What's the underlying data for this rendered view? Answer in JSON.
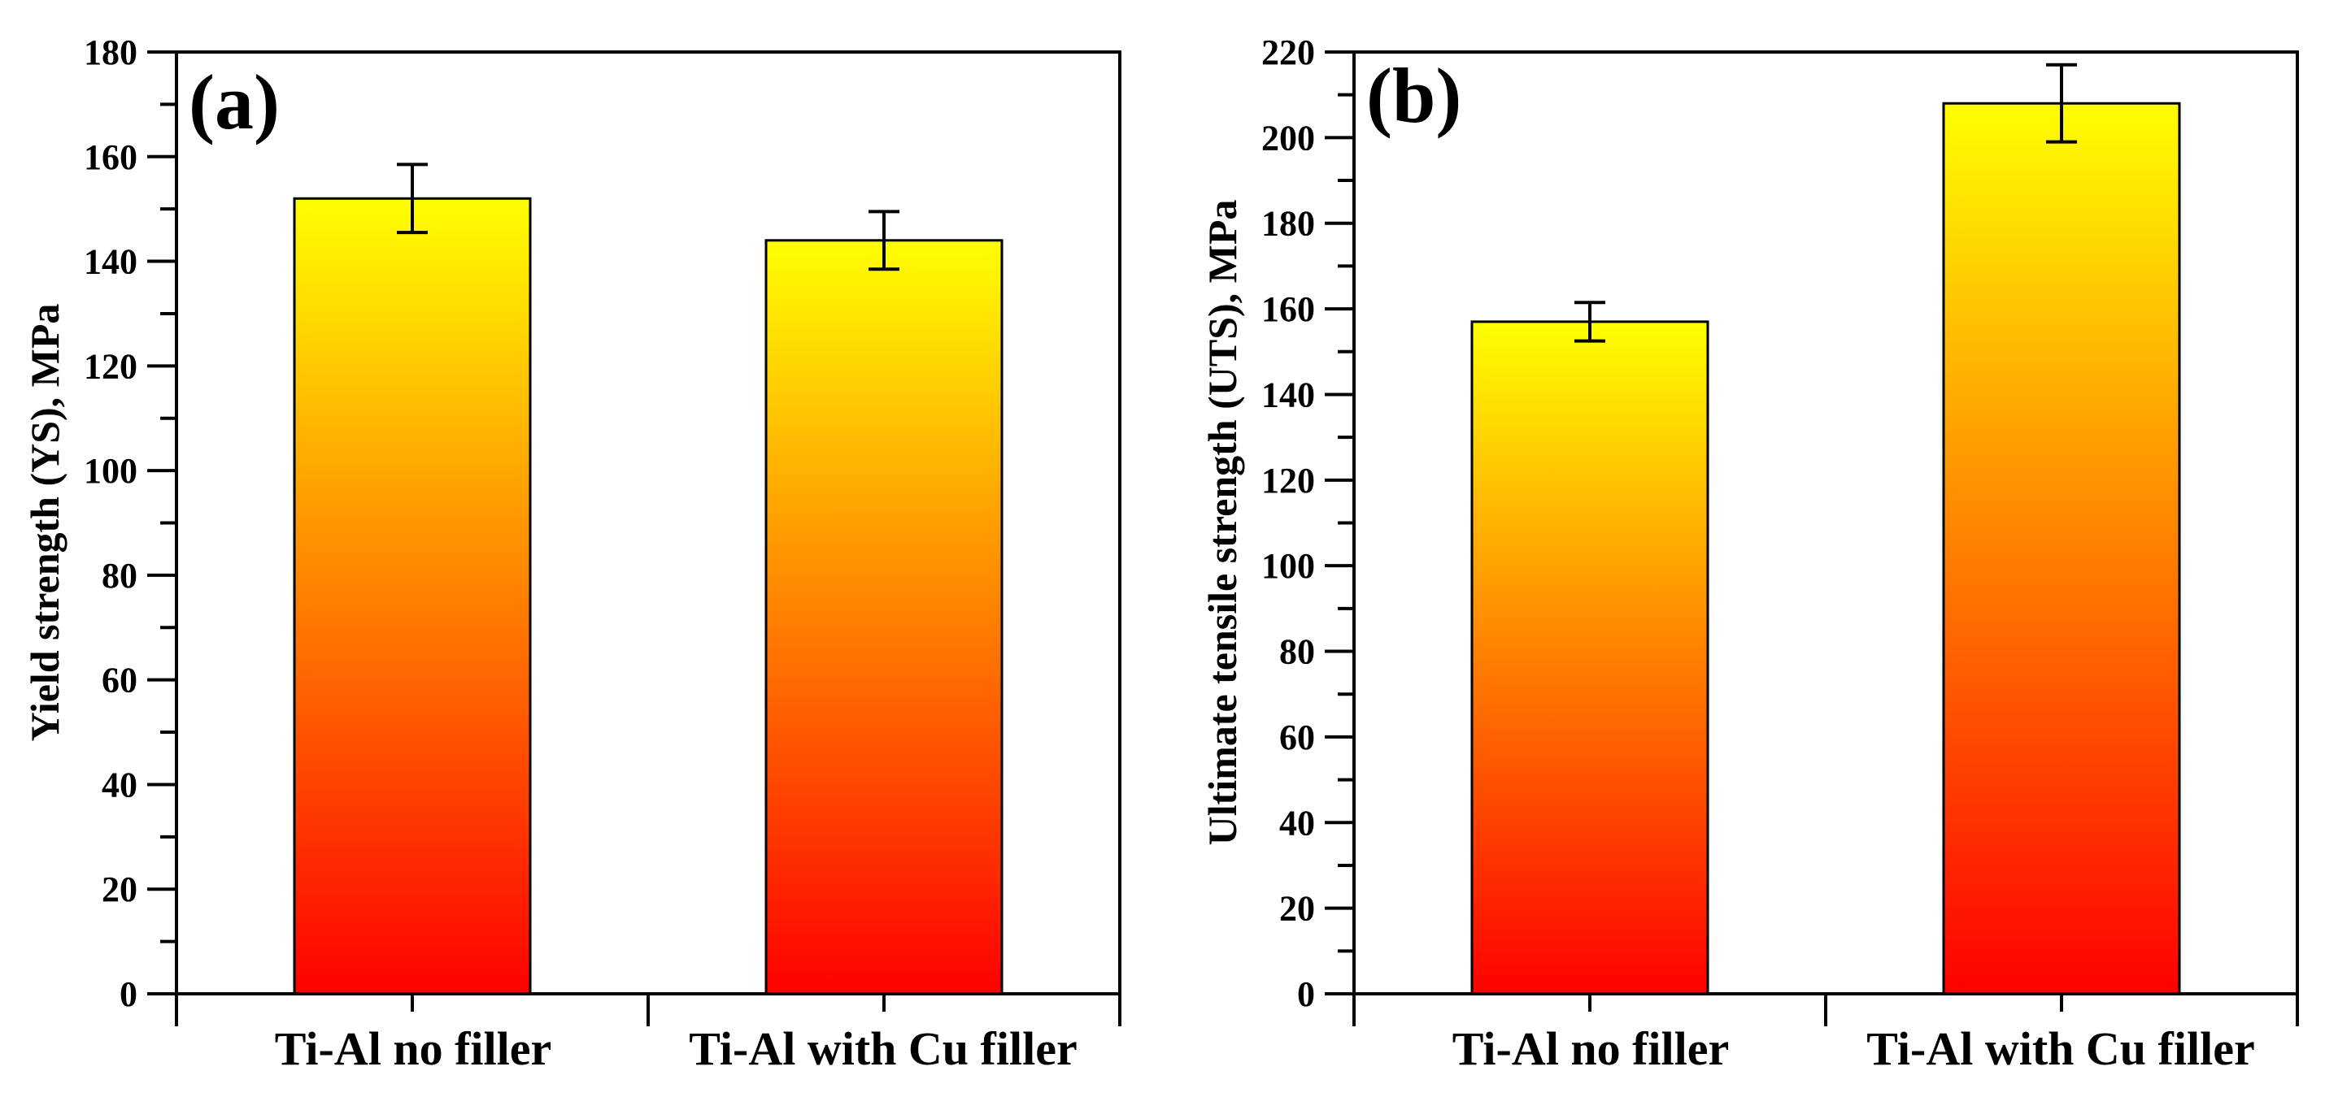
{
  "chart_data": [
    {
      "type": "bar",
      "panel_label": "(a)",
      "categories": [
        "Ti-Al no filler",
        "Ti-Al with Cu filler"
      ],
      "values": [
        152,
        144
      ],
      "errors": [
        6.5,
        5.5
      ],
      "ylabel": "Yield strength (YS), MPa",
      "xlabel": "",
      "ylim": [
        0,
        180
      ],
      "yticks": [
        0,
        20,
        40,
        60,
        80,
        100,
        120,
        140,
        160,
        180
      ],
      "yticks_text": [
        "0",
        "20",
        "40",
        "60",
        "80",
        "100",
        "120",
        "140",
        "160",
        "180"
      ],
      "grid": false,
      "bar_gradient": {
        "top": "#ffff00",
        "bottom": "#ff0000"
      }
    },
    {
      "type": "bar",
      "panel_label": "(b)",
      "categories": [
        "Ti-Al no filler",
        "Ti-Al with Cu filler"
      ],
      "values": [
        157,
        208
      ],
      "errors": [
        4.5,
        9
      ],
      "ylabel": "Ultimate tensile strength (UTS), MPa",
      "xlabel": "",
      "ylim": [
        0,
        220
      ],
      "yticks": [
        0,
        20,
        40,
        60,
        80,
        100,
        120,
        140,
        160,
        180,
        200,
        220
      ],
      "yticks_text": [
        "0",
        "20",
        "40",
        "60",
        "80",
        "100",
        "120",
        "140",
        "160",
        "180",
        "200",
        "220"
      ],
      "grid": false,
      "bar_gradient": {
        "top": "#ffff00",
        "bottom": "#ff0000"
      }
    }
  ]
}
